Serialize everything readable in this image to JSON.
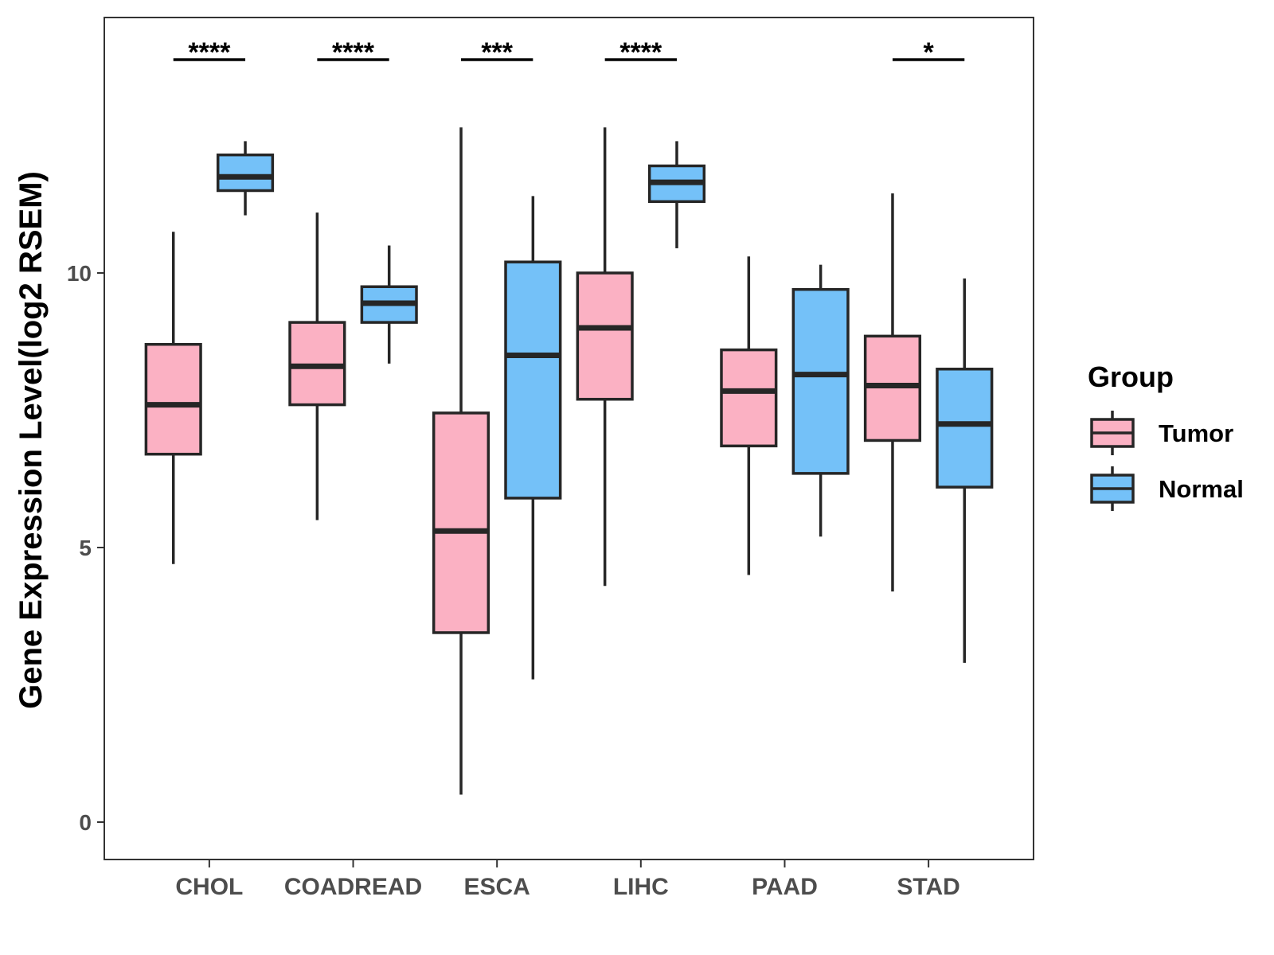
{
  "chart_data": {
    "type": "boxplot",
    "title": "",
    "xlabel": "",
    "ylabel": "Gene Expression Level(log2 RSEM)",
    "ylim": [
      -0.7,
      14.65
    ],
    "yticks": [
      0,
      5,
      10
    ],
    "grid": false,
    "categories": [
      "CHOL",
      "COADREAD",
      "ESCA",
      "LIHC",
      "PAAD",
      "STAD"
    ],
    "legend": {
      "title": "Group",
      "position": "right",
      "entries": [
        {
          "name": "Tumor",
          "color": "#FBB1C3"
        },
        {
          "name": "Normal",
          "color": "#74C1F8"
        }
      ]
    },
    "series": [
      {
        "name": "Tumor",
        "color": "#FBB1C3",
        "boxes": [
          {
            "min": 4.7,
            "q1": 6.7,
            "median": 7.6,
            "q3": 8.7,
            "max": 10.75
          },
          {
            "min": 5.5,
            "q1": 7.6,
            "median": 8.3,
            "q3": 9.1,
            "max": 11.1
          },
          {
            "min": 0.5,
            "q1": 3.45,
            "median": 5.3,
            "q3": 7.45,
            "max": 12.65
          },
          {
            "min": 4.3,
            "q1": 7.7,
            "median": 9.0,
            "q3": 10.0,
            "max": 12.65
          },
          {
            "min": 4.5,
            "q1": 6.85,
            "median": 7.85,
            "q3": 8.6,
            "max": 10.3
          },
          {
            "min": 4.2,
            "q1": 6.95,
            "median": 7.95,
            "q3": 8.85,
            "max": 11.45
          }
        ]
      },
      {
        "name": "Normal",
        "color": "#74C1F8",
        "boxes": [
          {
            "min": 11.05,
            "q1": 11.5,
            "median": 11.75,
            "q3": 12.15,
            "max": 12.4
          },
          {
            "min": 8.35,
            "q1": 9.1,
            "median": 9.45,
            "q3": 9.75,
            "max": 10.5
          },
          {
            "min": 2.6,
            "q1": 5.9,
            "median": 8.5,
            "q3": 10.2,
            "max": 11.4
          },
          {
            "min": 10.45,
            "q1": 11.3,
            "median": 11.65,
            "q3": 11.95,
            "max": 12.4
          },
          {
            "min": 5.2,
            "q1": 6.35,
            "median": 8.15,
            "q3": 9.7,
            "max": 10.15
          },
          {
            "min": 2.9,
            "q1": 6.1,
            "median": 7.25,
            "q3": 8.25,
            "max": 9.9
          }
        ]
      }
    ],
    "significance": [
      "****",
      "****",
      "***",
      "****",
      "",
      "*"
    ]
  }
}
